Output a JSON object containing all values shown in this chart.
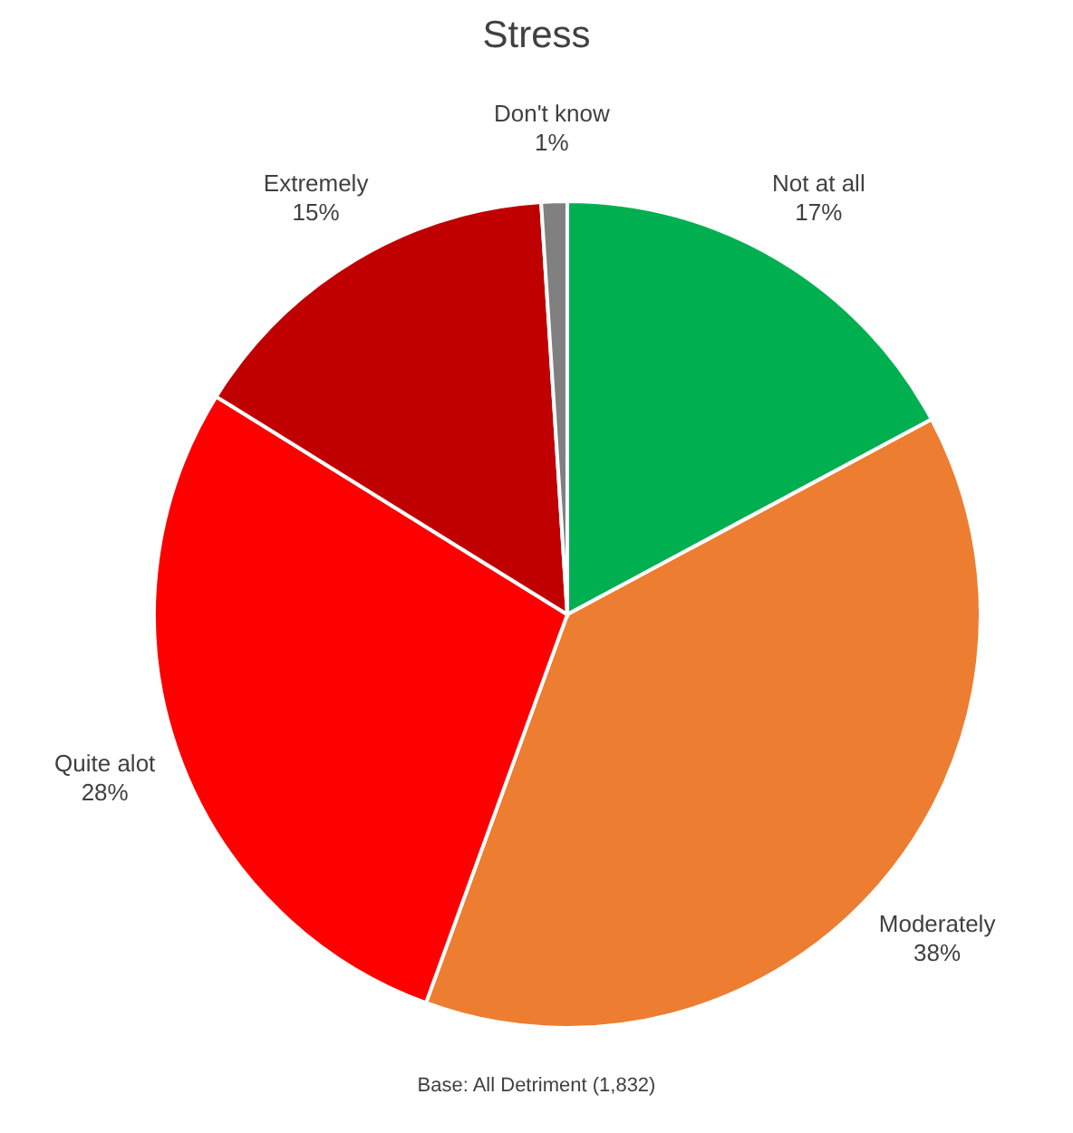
{
  "chart_data": {
    "type": "pie",
    "title": "Stress",
    "categories": [
      "Not at all",
      "Moderately",
      "Quite alot",
      "Extremely",
      "Don't know"
    ],
    "values": [
      17,
      38,
      28,
      15,
      1
    ],
    "value_labels": [
      "17%",
      "38%",
      "28%",
      "15%",
      "1%"
    ],
    "colors": [
      "#00b050",
      "#ed7d31",
      "#ff0000",
      "#c00000",
      "#808080"
    ],
    "annotations": [
      "Base: All Detriment (1,832)"
    ]
  }
}
